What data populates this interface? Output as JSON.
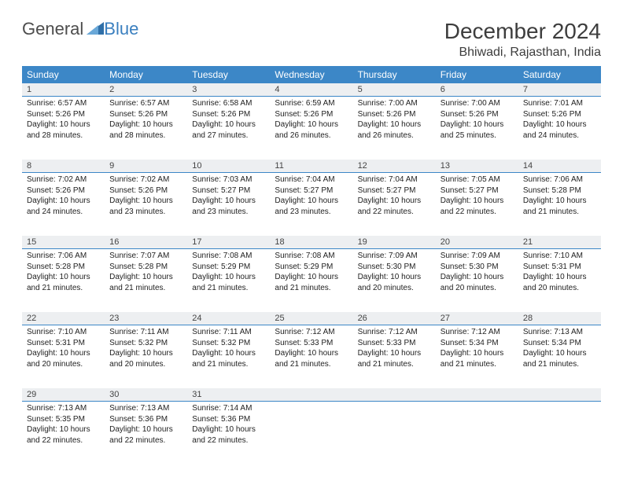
{
  "brand_part1": "General",
  "brand_part2": "Blue",
  "month_title": "December 2024",
  "location": "Bhiwadi, Rajasthan, India",
  "colors": {
    "header_bg": "#3c87c7",
    "header_text": "#ffffff",
    "daynum_bg": "#edeff1",
    "daynum_border": "#3c87c7",
    "text": "#222222",
    "brand_gray": "#4d4d4d",
    "brand_blue": "#3a7fbf"
  },
  "weekdays": [
    "Sunday",
    "Monday",
    "Tuesday",
    "Wednesday",
    "Thursday",
    "Friday",
    "Saturday"
  ],
  "weeks": [
    {
      "nums": [
        "1",
        "2",
        "3",
        "4",
        "5",
        "6",
        "7"
      ],
      "cells": [
        {
          "sunrise": "Sunrise: 6:57 AM",
          "sunset": "Sunset: 5:26 PM",
          "daylight": "Daylight: 10 hours and 28 minutes."
        },
        {
          "sunrise": "Sunrise: 6:57 AM",
          "sunset": "Sunset: 5:26 PM",
          "daylight": "Daylight: 10 hours and 28 minutes."
        },
        {
          "sunrise": "Sunrise: 6:58 AM",
          "sunset": "Sunset: 5:26 PM",
          "daylight": "Daylight: 10 hours and 27 minutes."
        },
        {
          "sunrise": "Sunrise: 6:59 AM",
          "sunset": "Sunset: 5:26 PM",
          "daylight": "Daylight: 10 hours and 26 minutes."
        },
        {
          "sunrise": "Sunrise: 7:00 AM",
          "sunset": "Sunset: 5:26 PM",
          "daylight": "Daylight: 10 hours and 26 minutes."
        },
        {
          "sunrise": "Sunrise: 7:00 AM",
          "sunset": "Sunset: 5:26 PM",
          "daylight": "Daylight: 10 hours and 25 minutes."
        },
        {
          "sunrise": "Sunrise: 7:01 AM",
          "sunset": "Sunset: 5:26 PM",
          "daylight": "Daylight: 10 hours and 24 minutes."
        }
      ]
    },
    {
      "nums": [
        "8",
        "9",
        "10",
        "11",
        "12",
        "13",
        "14"
      ],
      "cells": [
        {
          "sunrise": "Sunrise: 7:02 AM",
          "sunset": "Sunset: 5:26 PM",
          "daylight": "Daylight: 10 hours and 24 minutes."
        },
        {
          "sunrise": "Sunrise: 7:02 AM",
          "sunset": "Sunset: 5:26 PM",
          "daylight": "Daylight: 10 hours and 23 minutes."
        },
        {
          "sunrise": "Sunrise: 7:03 AM",
          "sunset": "Sunset: 5:27 PM",
          "daylight": "Daylight: 10 hours and 23 minutes."
        },
        {
          "sunrise": "Sunrise: 7:04 AM",
          "sunset": "Sunset: 5:27 PM",
          "daylight": "Daylight: 10 hours and 23 minutes."
        },
        {
          "sunrise": "Sunrise: 7:04 AM",
          "sunset": "Sunset: 5:27 PM",
          "daylight": "Daylight: 10 hours and 22 minutes."
        },
        {
          "sunrise": "Sunrise: 7:05 AM",
          "sunset": "Sunset: 5:27 PM",
          "daylight": "Daylight: 10 hours and 22 minutes."
        },
        {
          "sunrise": "Sunrise: 7:06 AM",
          "sunset": "Sunset: 5:28 PM",
          "daylight": "Daylight: 10 hours and 21 minutes."
        }
      ]
    },
    {
      "nums": [
        "15",
        "16",
        "17",
        "18",
        "19",
        "20",
        "21"
      ],
      "cells": [
        {
          "sunrise": "Sunrise: 7:06 AM",
          "sunset": "Sunset: 5:28 PM",
          "daylight": "Daylight: 10 hours and 21 minutes."
        },
        {
          "sunrise": "Sunrise: 7:07 AM",
          "sunset": "Sunset: 5:28 PM",
          "daylight": "Daylight: 10 hours and 21 minutes."
        },
        {
          "sunrise": "Sunrise: 7:08 AM",
          "sunset": "Sunset: 5:29 PM",
          "daylight": "Daylight: 10 hours and 21 minutes."
        },
        {
          "sunrise": "Sunrise: 7:08 AM",
          "sunset": "Sunset: 5:29 PM",
          "daylight": "Daylight: 10 hours and 21 minutes."
        },
        {
          "sunrise": "Sunrise: 7:09 AM",
          "sunset": "Sunset: 5:30 PM",
          "daylight": "Daylight: 10 hours and 20 minutes."
        },
        {
          "sunrise": "Sunrise: 7:09 AM",
          "sunset": "Sunset: 5:30 PM",
          "daylight": "Daylight: 10 hours and 20 minutes."
        },
        {
          "sunrise": "Sunrise: 7:10 AM",
          "sunset": "Sunset: 5:31 PM",
          "daylight": "Daylight: 10 hours and 20 minutes."
        }
      ]
    },
    {
      "nums": [
        "22",
        "23",
        "24",
        "25",
        "26",
        "27",
        "28"
      ],
      "cells": [
        {
          "sunrise": "Sunrise: 7:10 AM",
          "sunset": "Sunset: 5:31 PM",
          "daylight": "Daylight: 10 hours and 20 minutes."
        },
        {
          "sunrise": "Sunrise: 7:11 AM",
          "sunset": "Sunset: 5:32 PM",
          "daylight": "Daylight: 10 hours and 20 minutes."
        },
        {
          "sunrise": "Sunrise: 7:11 AM",
          "sunset": "Sunset: 5:32 PM",
          "daylight": "Daylight: 10 hours and 21 minutes."
        },
        {
          "sunrise": "Sunrise: 7:12 AM",
          "sunset": "Sunset: 5:33 PM",
          "daylight": "Daylight: 10 hours and 21 minutes."
        },
        {
          "sunrise": "Sunrise: 7:12 AM",
          "sunset": "Sunset: 5:33 PM",
          "daylight": "Daylight: 10 hours and 21 minutes."
        },
        {
          "sunrise": "Sunrise: 7:12 AM",
          "sunset": "Sunset: 5:34 PM",
          "daylight": "Daylight: 10 hours and 21 minutes."
        },
        {
          "sunrise": "Sunrise: 7:13 AM",
          "sunset": "Sunset: 5:34 PM",
          "daylight": "Daylight: 10 hours and 21 minutes."
        }
      ]
    },
    {
      "nums": [
        "29",
        "30",
        "31",
        "",
        "",
        "",
        ""
      ],
      "cells": [
        {
          "sunrise": "Sunrise: 7:13 AM",
          "sunset": "Sunset: 5:35 PM",
          "daylight": "Daylight: 10 hours and 22 minutes."
        },
        {
          "sunrise": "Sunrise: 7:13 AM",
          "sunset": "Sunset: 5:36 PM",
          "daylight": "Daylight: 10 hours and 22 minutes."
        },
        {
          "sunrise": "Sunrise: 7:14 AM",
          "sunset": "Sunset: 5:36 PM",
          "daylight": "Daylight: 10 hours and 22 minutes."
        },
        {
          "sunrise": "",
          "sunset": "",
          "daylight": ""
        },
        {
          "sunrise": "",
          "sunset": "",
          "daylight": ""
        },
        {
          "sunrise": "",
          "sunset": "",
          "daylight": ""
        },
        {
          "sunrise": "",
          "sunset": "",
          "daylight": ""
        }
      ]
    }
  ]
}
